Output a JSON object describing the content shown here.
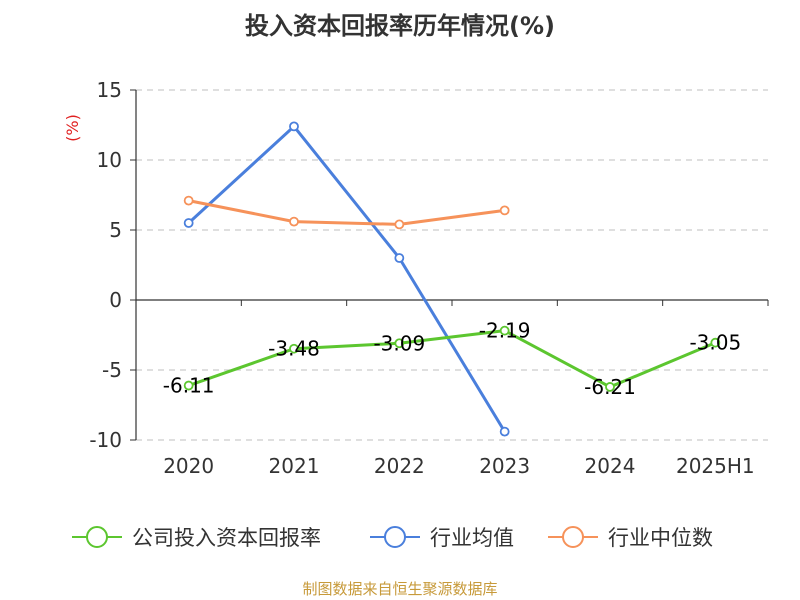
{
  "chart_data": {
    "type": "line",
    "title": "投入资本回报率历年情况(%)",
    "ylabel": "(%)",
    "xlabel": "",
    "categories": [
      "2020",
      "2021",
      "2022",
      "2023",
      "2024",
      "2025H1"
    ],
    "ylim": [
      -10,
      15
    ],
    "yticks": [
      15,
      10,
      5,
      0,
      -5,
      -10
    ],
    "grid": true,
    "legend_position": "bottom",
    "series": [
      {
        "name": "公司投入资本回报率",
        "color": "#5cc62f",
        "values": [
          -6.11,
          -3.48,
          -3.09,
          -2.19,
          -6.21,
          -3.05
        ],
        "labels": [
          "-6.11",
          "-3.48",
          "-3.09",
          "-2.19",
          "-6.21",
          "-3.05"
        ]
      },
      {
        "name": "行业均值",
        "color": "#4a7fdc",
        "values": [
          5.5,
          12.4,
          3.0,
          -9.4,
          null,
          null
        ]
      },
      {
        "name": "行业中位数",
        "color": "#f6925a",
        "values": [
          7.1,
          5.6,
          5.4,
          6.4,
          null,
          null
        ]
      }
    ]
  },
  "footer": {
    "source": "制图数据来自恒生聚源数据库"
  }
}
